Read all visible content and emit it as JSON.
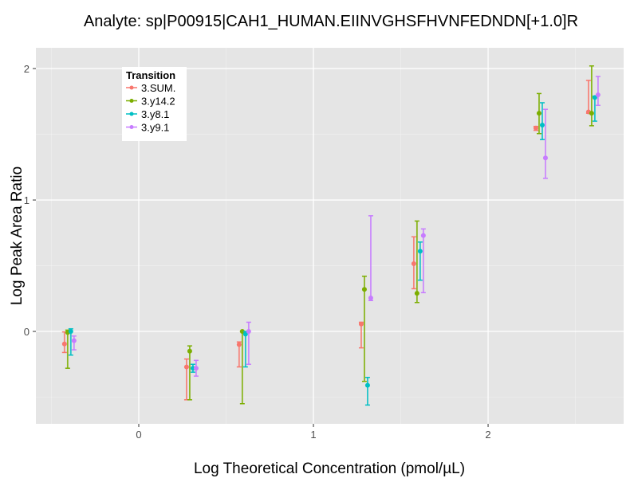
{
  "chart_data": {
    "type": "scatter",
    "title": "Analyte: sp|P00915|CAH1_HUMAN.EIINVGHSFHVNFEDNDN[+1.0]R",
    "xlabel": "Log Theoretical Concentration (pmol/µL)",
    "ylabel": "Log Peak Area Ratio",
    "xlim": [
      -0.589,
      2.776
    ],
    "ylim": [
      -0.703,
      2.158
    ],
    "xticks": [
      0,
      1,
      2
    ],
    "xtick_labels": [
      "0",
      "1",
      "2"
    ],
    "yticks": [
      0,
      1,
      2
    ],
    "ytick_labels": [
      "0",
      "1",
      "2"
    ],
    "grid": true,
    "legend": {
      "title": "Transition",
      "placement": "top-left"
    },
    "x": [
      -0.398,
      0.301,
      0.602,
      1.301,
      1.602,
      2.301,
      2.602
    ],
    "series": [
      {
        "name": "3.SUM.",
        "color": "#F8766D",
        "values": [
          -0.095,
          -0.27,
          -0.1,
          0.056,
          0.515,
          1.547,
          1.67
        ],
        "lower": [
          -0.16,
          -0.52,
          -0.27,
          -0.125,
          0.325,
          1.53,
          1.66
        ],
        "upper": [
          -0.004,
          -0.21,
          -0.08,
          0.07,
          0.72,
          1.56,
          1.91
        ]
      },
      {
        "name": "3.y14.2",
        "color": "#7CAE00",
        "values": [
          -0.008,
          -0.15,
          0.0,
          0.32,
          0.29,
          1.66,
          1.66
        ],
        "lower": [
          -0.28,
          -0.52,
          -0.55,
          -0.38,
          0.22,
          1.505,
          1.565
        ],
        "upper": [
          0.01,
          -0.11,
          0.0,
          0.42,
          0.84,
          1.81,
          2.02
        ]
      },
      {
        "name": "3.y8.1",
        "color": "#00BFC4",
        "values": [
          0.0,
          -0.28,
          -0.02,
          -0.41,
          0.61,
          1.57,
          1.78
        ],
        "lower": [
          -0.18,
          -0.31,
          -0.27,
          -0.56,
          0.39,
          1.46,
          1.6
        ],
        "upper": [
          0.02,
          -0.25,
          0.0,
          -0.35,
          0.68,
          1.74,
          1.79
        ]
      },
      {
        "name": "3.y9.1",
        "color": "#C77CFF",
        "values": [
          -0.07,
          -0.28,
          0.0,
          0.255,
          0.73,
          1.32,
          1.8
        ],
        "lower": [
          -0.14,
          -0.34,
          -0.25,
          0.235,
          0.295,
          1.165,
          1.72
        ],
        "upper": [
          -0.035,
          -0.22,
          0.07,
          0.88,
          0.78,
          1.69,
          1.94
        ]
      }
    ]
  }
}
